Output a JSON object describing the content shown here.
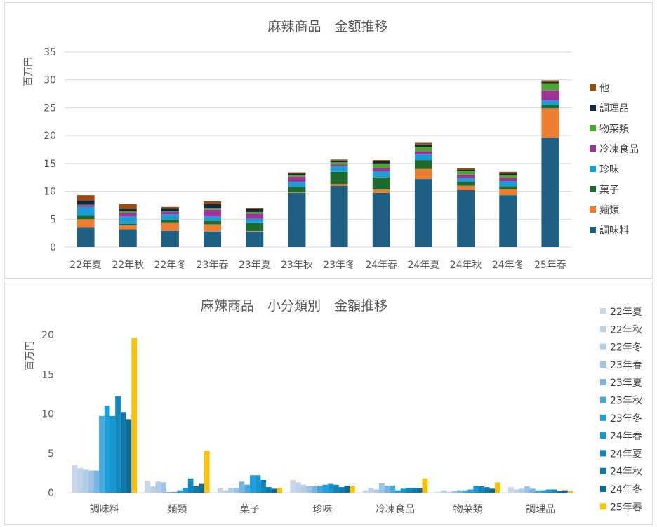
{
  "chart_data": [
    {
      "type": "bar",
      "stacked": true,
      "title": "麻辣商品　金額推移",
      "ylabel": "百万円",
      "xlabel": "",
      "ylim": [
        0,
        35
      ],
      "yticks": [
        0,
        5,
        10,
        15,
        20,
        25,
        30,
        35
      ],
      "grid": true,
      "legend_position": "right",
      "categories": [
        "22年夏",
        "22年秋",
        "22年冬",
        "23年春",
        "23年夏",
        "23年秋",
        "23年冬",
        "24年春",
        "24年夏",
        "24年秋",
        "24年冬",
        "25年春"
      ],
      "series": [
        {
          "name": "調味料",
          "color": "#1f5f84",
          "values": [
            3.5,
            3.1,
            2.9,
            2.8,
            2.8,
            9.7,
            11.0,
            9.7,
            12.2,
            10.2,
            9.3,
            19.6
          ]
        },
        {
          "name": "麺類",
          "color": "#ed7d31",
          "values": [
            1.5,
            0.8,
            1.4,
            1.3,
            0.1,
            0.1,
            0.3,
            0.6,
            1.8,
            0.8,
            1.1,
            5.3
          ]
        },
        {
          "name": "菓子",
          "color": "#1e6b2e",
          "values": [
            0.6,
            0.3,
            0.6,
            0.6,
            1.4,
            1.0,
            2.2,
            2.2,
            1.6,
            0.7,
            0.5,
            0.6
          ]
        },
        {
          "name": "珍味",
          "color": "#1f9bd7",
          "values": [
            1.6,
            1.3,
            1.0,
            0.8,
            0.8,
            0.9,
            1.0,
            1.1,
            1.0,
            0.7,
            0.9,
            0.8
          ]
        },
        {
          "name": "冷凍食品",
          "color": "#a0309a",
          "values": [
            0.3,
            0.6,
            0.4,
            1.2,
            0.9,
            0.9,
            0.3,
            0.5,
            0.6,
            0.6,
            0.6,
            1.8
          ]
        },
        {
          "name": "物菜類",
          "color": "#4ea72e",
          "values": [
            0.1,
            0.3,
            0.1,
            0.2,
            0.3,
            0.3,
            0.4,
            0.9,
            0.8,
            0.7,
            0.5,
            1.3
          ]
        },
        {
          "name": "調理品",
          "color": "#0e2841",
          "values": [
            0.7,
            0.4,
            0.5,
            0.8,
            0.5,
            0.3,
            0.3,
            0.4,
            0.4,
            0.2,
            0.3,
            0.2
          ]
        },
        {
          "name": "他",
          "color": "#9c4a14",
          "values": [
            1.0,
            0.9,
            0.3,
            0.5,
            0.2,
            0.2,
            0.2,
            0.2,
            0.3,
            0.2,
            0.3,
            0.3
          ]
        }
      ]
    },
    {
      "type": "bar",
      "stacked": false,
      "title": "麻辣商品　小分類別　金額推移",
      "ylabel": "百万円",
      "xlabel": "",
      "ylim": [
        0,
        20
      ],
      "yticks": [
        0,
        5,
        10,
        15,
        20
      ],
      "grid": false,
      "legend_position": "right",
      "categories": [
        "調味料",
        "麺類",
        "菓子",
        "珍味",
        "冷凍食品",
        "物菜類",
        "調理品"
      ],
      "series": [
        {
          "name": "22年夏",
          "color": "#c8d8ea",
          "values": [
            3.5,
            1.5,
            0.6,
            1.6,
            0.3,
            0.1,
            0.7
          ]
        },
        {
          "name": "22年秋",
          "color": "#bfd2e8",
          "values": [
            3.1,
            0.8,
            0.3,
            1.3,
            0.6,
            0.3,
            0.4
          ]
        },
        {
          "name": "22年冬",
          "color": "#b0cce6",
          "values": [
            2.9,
            1.4,
            0.6,
            1.0,
            0.4,
            0.1,
            0.5
          ]
        },
        {
          "name": "23年春",
          "color": "#9ec3e4",
          "values": [
            2.8,
            1.3,
            0.6,
            0.8,
            1.2,
            0.2,
            0.8
          ]
        },
        {
          "name": "23年夏",
          "color": "#79b5e0",
          "values": [
            2.8,
            0.1,
            1.4,
            0.8,
            0.9,
            0.3,
            0.5
          ]
        },
        {
          "name": "23年秋",
          "color": "#4aa7dc",
          "values": [
            9.7,
            0.1,
            1.0,
            0.9,
            0.9,
            0.3,
            0.3
          ]
        },
        {
          "name": "23年冬",
          "color": "#1f9fd9",
          "values": [
            11.0,
            0.3,
            2.2,
            1.0,
            0.3,
            0.4,
            0.3
          ]
        },
        {
          "name": "24年春",
          "color": "#1596cf",
          "values": [
            9.7,
            0.6,
            2.2,
            1.1,
            0.5,
            0.9,
            0.4
          ]
        },
        {
          "name": "24年夏",
          "color": "#1186bd",
          "values": [
            12.2,
            1.8,
            1.6,
            1.0,
            0.6,
            0.8,
            0.4
          ]
        },
        {
          "name": "24年秋",
          "color": "#0f78aa",
          "values": [
            10.2,
            0.8,
            0.7,
            0.7,
            0.6,
            0.7,
            0.2
          ]
        },
        {
          "name": "24年冬",
          "color": "#0e6b99",
          "values": [
            9.3,
            1.1,
            0.5,
            0.9,
            0.6,
            0.5,
            0.3
          ]
        },
        {
          "name": "25年春",
          "color": "#ffc000",
          "values": [
            19.6,
            5.3,
            0.6,
            0.8,
            1.8,
            1.3,
            0.2
          ]
        }
      ]
    }
  ]
}
